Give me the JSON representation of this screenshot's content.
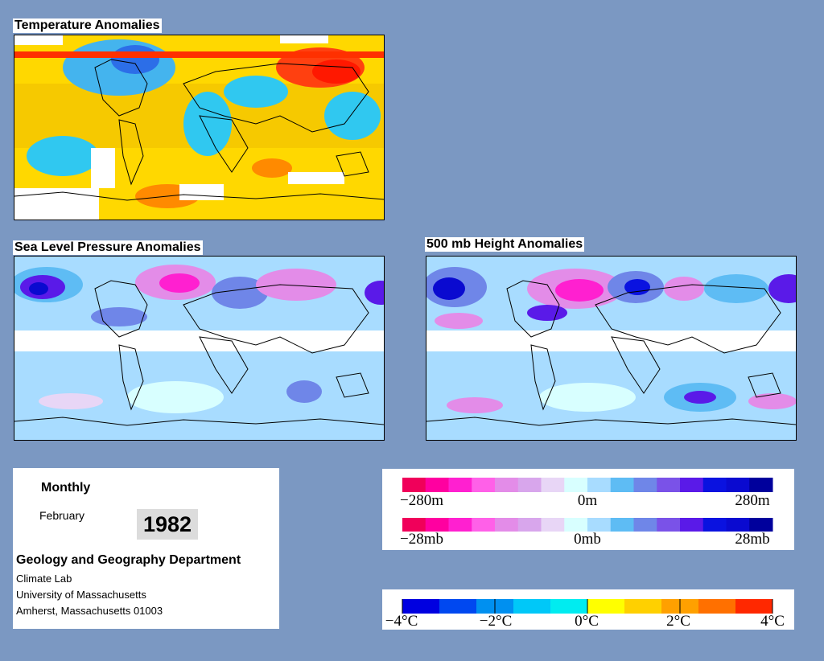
{
  "maps": {
    "temperature": {
      "title": "Temperature Anomalies"
    },
    "pressure": {
      "title": "Sea Level Pressure Anomalies"
    },
    "height": {
      "title": "500 mb Height Anomalies"
    }
  },
  "info": {
    "frequency": "Monthly",
    "month": "February",
    "year": "1982",
    "department": "Geology and Geography Department",
    "lab": "Climate Lab",
    "university": "University of Massachusetts",
    "address": "Amherst, Massachusetts 01003"
  },
  "legends": {
    "height": {
      "labels": [
        "−280m",
        "0m",
        "280m"
      ],
      "colors": [
        "#f0005a",
        "#ff00a0",
        "#ff20d0",
        "#ff60e8",
        "#e38ce8",
        "#d8a6ec",
        "#e8d6f6",
        "#d8ffff",
        "#a8dcff",
        "#5ebcf4",
        "#6f86e8",
        "#7a52e8",
        "#5a1ae8",
        "#0a12e0",
        "#0a0ad0",
        "#00009c"
      ]
    },
    "pressure": {
      "labels": [
        "−28mb",
        "0mb",
        "28mb"
      ],
      "colors": [
        "#f0005a",
        "#ff00a0",
        "#ff20d0",
        "#ff60e8",
        "#e38ce8",
        "#d8a6ec",
        "#e8d6f6",
        "#d8ffff",
        "#a8dcff",
        "#5ebcf4",
        "#6f86e8",
        "#7a52e8",
        "#5a1ae8",
        "#0a12e0",
        "#0a0ad0",
        "#00009c"
      ]
    },
    "temperature": {
      "labels": [
        "−4°C",
        "−2°C",
        "0°C",
        "2°C",
        "4°C"
      ],
      "colors": [
        "#0000e0",
        "#0048f0",
        "#0090f0",
        "#00c8f8",
        "#00ecf0",
        "#ffff00",
        "#ffd000",
        "#ffa000",
        "#ff7000",
        "#ff2800"
      ]
    }
  }
}
